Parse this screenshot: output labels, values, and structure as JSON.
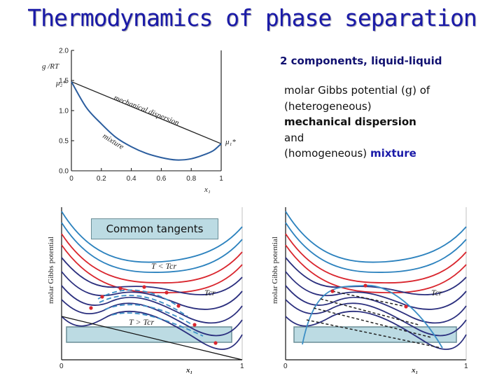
{
  "title": "Thermodynamics of phase separation",
  "subtitle": "2 components, liquid-liquid",
  "description": {
    "line1_text": "molar Gibbs potential (",
    "line1_symbol": "g",
    "line1_tail": ") of",
    "line2": "(heterogeneous)",
    "line3": "mechanical dispersion",
    "line4": "and",
    "line5_prefix": "(homogeneous) ",
    "line5_bold": "mixture"
  },
  "common_tangents_label": "Common tangents",
  "colors": {
    "title": "#1a1aa8",
    "tangent_box": "#bcdbe3",
    "curve_blue": "#2b5d9e",
    "curve_red": "#d9262e",
    "curve_navy": "#2b2f7e",
    "curve_cyan": "#3d8fc6"
  },
  "chart_data": [
    {
      "type": "line",
      "title": "",
      "xlabel": "x₁",
      "ylabel": "g /RT",
      "xlim": [
        0,
        1
      ],
      "ylim": [
        0,
        2.0
      ],
      "xticks": [
        "0",
        "0.2",
        "0.4",
        "0.6",
        "0.8",
        "1"
      ],
      "yticks": [
        "0.0",
        "0.5",
        "1.0",
        "1.5",
        "2.0"
      ],
      "series": [
        {
          "name": "mechanical dispersion",
          "x": [
            0,
            1
          ],
          "y": [
            1.48,
            0.45
          ]
        },
        {
          "name": "mixture",
          "x": [
            0,
            0.1,
            0.2,
            0.3,
            0.4,
            0.5,
            0.6,
            0.7,
            0.8,
            0.9,
            0.95,
            1.0
          ],
          "y": [
            1.48,
            1.05,
            0.78,
            0.55,
            0.4,
            0.29,
            0.22,
            0.18,
            0.2,
            0.28,
            0.34,
            0.45
          ]
        }
      ],
      "annotations": [
        "μ₂*",
        "μ₁*",
        "mechanical dispersion",
        "mixture"
      ]
    },
    {
      "type": "line",
      "title": "",
      "xlabel": "x₁",
      "ylabel": "molar Gibbs potential",
      "xticks": [
        "0",
        "1"
      ],
      "annotations": [
        "T < Tcr",
        "Tcr",
        "T > Tcr",
        "Common tangents"
      ]
    },
    {
      "type": "line",
      "title": "",
      "xlabel": "x₁",
      "ylabel": "molar Gibbs potential",
      "xticks": [
        "0",
        "1"
      ],
      "annotations": [
        "Tcr"
      ]
    }
  ]
}
